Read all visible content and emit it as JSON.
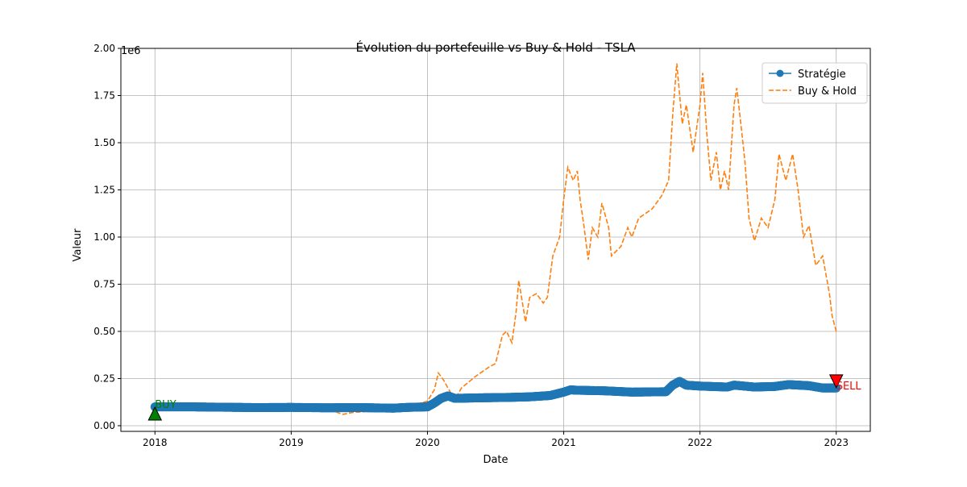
{
  "chart_data": {
    "type": "line",
    "title": "Évolution du portefeuille vs Buy & Hold - TSLA",
    "xlabel": "Date",
    "ylabel": "Valeur",
    "y_offset_label": "1e6",
    "xlim": [
      2017.75,
      2023.25
    ],
    "ylim": [
      -0.03,
      2.0
    ],
    "x_ticks": [
      2018,
      2019,
      2020,
      2021,
      2022,
      2023
    ],
    "x_tick_labels": [
      "2018",
      "2019",
      "2020",
      "2021",
      "2022",
      "2023"
    ],
    "y_ticks": [
      0.0,
      0.25,
      0.5,
      0.75,
      1.0,
      1.25,
      1.5,
      1.75,
      2.0
    ],
    "y_tick_labels": [
      "0.00",
      "0.25",
      "0.50",
      "0.75",
      "1.00",
      "1.25",
      "1.50",
      "1.75",
      "2.00"
    ],
    "grid": true,
    "legend_position": "top-right",
    "series": [
      {
        "name": "Stratégie",
        "color": "#1f77b4",
        "style": "solid-with-markers",
        "points": [
          [
            2018.0,
            0.1
          ],
          [
            2018.25,
            0.1
          ],
          [
            2018.5,
            0.098
          ],
          [
            2018.75,
            0.096
          ],
          [
            2019.0,
            0.097
          ],
          [
            2019.25,
            0.095
          ],
          [
            2019.5,
            0.096
          ],
          [
            2019.75,
            0.093
          ],
          [
            2019.85,
            0.097
          ],
          [
            2020.0,
            0.1
          ],
          [
            2020.05,
            0.12
          ],
          [
            2020.1,
            0.145
          ],
          [
            2020.15,
            0.158
          ],
          [
            2020.2,
            0.145
          ],
          [
            2020.4,
            0.148
          ],
          [
            2020.6,
            0.15
          ],
          [
            2020.75,
            0.153
          ],
          [
            2020.9,
            0.16
          ],
          [
            2021.0,
            0.178
          ],
          [
            2021.05,
            0.19
          ],
          [
            2021.1,
            0.188
          ],
          [
            2021.3,
            0.185
          ],
          [
            2021.5,
            0.178
          ],
          [
            2021.75,
            0.18
          ],
          [
            2021.8,
            0.215
          ],
          [
            2021.85,
            0.235
          ],
          [
            2021.9,
            0.215
          ],
          [
            2022.0,
            0.21
          ],
          [
            2022.2,
            0.205
          ],
          [
            2022.25,
            0.215
          ],
          [
            2022.4,
            0.205
          ],
          [
            2022.55,
            0.208
          ],
          [
            2022.65,
            0.218
          ],
          [
            2022.8,
            0.212
          ],
          [
            2022.9,
            0.2
          ],
          [
            2023.0,
            0.2
          ]
        ]
      },
      {
        "name": "Buy & Hold",
        "color": "#ff7f0e",
        "style": "dashed",
        "points": [
          [
            2018.0,
            0.1
          ],
          [
            2018.1,
            0.105
          ],
          [
            2018.2,
            0.095
          ],
          [
            2018.3,
            0.1
          ],
          [
            2018.4,
            0.085
          ],
          [
            2018.5,
            0.1
          ],
          [
            2018.55,
            0.115
          ],
          [
            2018.6,
            0.09
          ],
          [
            2018.7,
            0.085
          ],
          [
            2018.75,
            0.1
          ],
          [
            2018.85,
            0.11
          ],
          [
            2018.95,
            0.105
          ],
          [
            2019.0,
            0.1
          ],
          [
            2019.1,
            0.095
          ],
          [
            2019.2,
            0.085
          ],
          [
            2019.3,
            0.08
          ],
          [
            2019.38,
            0.06
          ],
          [
            2019.45,
            0.07
          ],
          [
            2019.55,
            0.075
          ],
          [
            2019.65,
            0.08
          ],
          [
            2019.75,
            0.085
          ],
          [
            2019.8,
            0.1
          ],
          [
            2019.9,
            0.11
          ],
          [
            2020.0,
            0.13
          ],
          [
            2020.05,
            0.19
          ],
          [
            2020.08,
            0.28
          ],
          [
            2020.12,
            0.24
          ],
          [
            2020.15,
            0.2
          ],
          [
            2020.2,
            0.14
          ],
          [
            2020.25,
            0.2
          ],
          [
            2020.3,
            0.23
          ],
          [
            2020.35,
            0.26
          ],
          [
            2020.45,
            0.31
          ],
          [
            2020.5,
            0.33
          ],
          [
            2020.55,
            0.48
          ],
          [
            2020.58,
            0.5
          ],
          [
            2020.62,
            0.44
          ],
          [
            2020.65,
            0.6
          ],
          [
            2020.67,
            0.77
          ],
          [
            2020.72,
            0.55
          ],
          [
            2020.75,
            0.68
          ],
          [
            2020.8,
            0.7
          ],
          [
            2020.85,
            0.65
          ],
          [
            2020.88,
            0.68
          ],
          [
            2020.92,
            0.9
          ],
          [
            2020.97,
            1.0
          ],
          [
            2021.0,
            1.2
          ],
          [
            2021.03,
            1.37
          ],
          [
            2021.07,
            1.3
          ],
          [
            2021.1,
            1.35
          ],
          [
            2021.12,
            1.2
          ],
          [
            2021.15,
            1.05
          ],
          [
            2021.18,
            0.88
          ],
          [
            2021.21,
            1.05
          ],
          [
            2021.25,
            1.0
          ],
          [
            2021.28,
            1.18
          ],
          [
            2021.33,
            1.05
          ],
          [
            2021.35,
            0.9
          ],
          [
            2021.42,
            0.95
          ],
          [
            2021.47,
            1.05
          ],
          [
            2021.5,
            1.0
          ],
          [
            2021.55,
            1.1
          ],
          [
            2021.65,
            1.15
          ],
          [
            2021.72,
            1.22
          ],
          [
            2021.77,
            1.3
          ],
          [
            2021.8,
            1.65
          ],
          [
            2021.83,
            1.92
          ],
          [
            2021.87,
            1.6
          ],
          [
            2021.9,
            1.7
          ],
          [
            2021.95,
            1.45
          ],
          [
            2022.0,
            1.7
          ],
          [
            2022.02,
            1.87
          ],
          [
            2022.05,
            1.55
          ],
          [
            2022.08,
            1.3
          ],
          [
            2022.12,
            1.45
          ],
          [
            2022.15,
            1.25
          ],
          [
            2022.18,
            1.35
          ],
          [
            2022.21,
            1.25
          ],
          [
            2022.25,
            1.7
          ],
          [
            2022.27,
            1.79
          ],
          [
            2022.3,
            1.6
          ],
          [
            2022.33,
            1.4
          ],
          [
            2022.36,
            1.1
          ],
          [
            2022.4,
            0.98
          ],
          [
            2022.45,
            1.1
          ],
          [
            2022.5,
            1.05
          ],
          [
            2022.55,
            1.2
          ],
          [
            2022.58,
            1.44
          ],
          [
            2022.63,
            1.3
          ],
          [
            2022.68,
            1.44
          ],
          [
            2022.72,
            1.25
          ],
          [
            2022.76,
            1.0
          ],
          [
            2022.8,
            1.06
          ],
          [
            2022.85,
            0.85
          ],
          [
            2022.9,
            0.9
          ],
          [
            2022.95,
            0.7
          ],
          [
            2022.97,
            0.58
          ],
          [
            2023.0,
            0.5
          ]
        ]
      }
    ],
    "annotations": [
      {
        "text": "BUY",
        "x": 2018.0,
        "y": 0.06,
        "marker": "triangle-up",
        "color": "#008000"
      },
      {
        "text": "SELL",
        "x": 2023.0,
        "y": 0.24,
        "marker": "triangle-down",
        "color": "#ff0000"
      }
    ]
  }
}
